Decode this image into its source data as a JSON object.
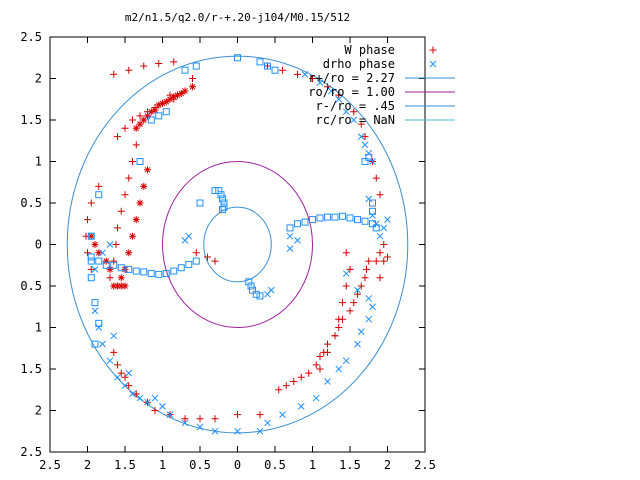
{
  "chart_data": {
    "type": "scatter",
    "title": "m2/n1.5/q2.0/r-+.20-j104/M0.15/512",
    "xlim": [
      -2.5,
      2.5
    ],
    "ylim": [
      -2.5,
      2.5
    ],
    "x_ticks": [
      -2.5,
      -2,
      -1.5,
      -1,
      -0.5,
      0,
      0.5,
      1,
      1.5,
      2,
      2.5
    ],
    "x_tick_labels": [
      "2.5",
      "2",
      "1.5",
      "1",
      "0.5",
      "0",
      "0.5",
      "1",
      "1.5",
      "2",
      "2.5"
    ],
    "y_ticks": [
      2.5,
      2,
      1.5,
      1,
      0.5,
      0,
      -0.5,
      -1,
      -1.5,
      -2,
      -2.5
    ],
    "y_tick_labels": [
      "2.5",
      "2",
      "1.5",
      "1",
      "0.5",
      "0",
      "0.5",
      "1",
      "1.5",
      "2",
      "2.5"
    ],
    "legend_position": "top-right",
    "series": [
      {
        "name": "W phase",
        "color": "#d40000",
        "marker": "plus",
        "points": [
          [
            -1.65,
            2.05
          ],
          [
            -1.45,
            2.1
          ],
          [
            -1.25,
            2.15
          ],
          [
            -1.05,
            2.18
          ],
          [
            -0.85,
            2.2
          ],
          [
            -0.6,
            2.0
          ],
          [
            -0.9,
            1.8
          ],
          [
            -0.7,
            1.85
          ],
          [
            -0.85,
            1.75
          ],
          [
            -1.0,
            1.7
          ],
          [
            -1.1,
            1.65
          ],
          [
            -1.2,
            1.6
          ],
          [
            -1.3,
            1.55
          ],
          [
            -1.4,
            1.5
          ],
          [
            -1.5,
            1.4
          ],
          [
            -1.6,
            1.3
          ],
          [
            -1.35,
            1.2
          ],
          [
            -1.4,
            1.0
          ],
          [
            -1.45,
            0.8
          ],
          [
            -1.5,
            0.6
          ],
          [
            -1.55,
            0.4
          ],
          [
            -1.6,
            0.2
          ],
          [
            -1.62,
            0.0
          ],
          [
            -1.65,
            -0.2
          ],
          [
            -1.7,
            -0.4
          ],
          [
            -1.85,
            0.7
          ],
          [
            -1.95,
            0.5
          ],
          [
            -2.0,
            0.3
          ],
          [
            -2.02,
            0.1
          ],
          [
            -2.0,
            -0.1
          ],
          [
            -1.95,
            -0.3
          ],
          [
            -1.65,
            -1.3
          ],
          [
            -1.6,
            -1.45
          ],
          [
            -1.55,
            -1.55
          ],
          [
            -1.5,
            -1.6
          ],
          [
            -1.45,
            -1.7
          ],
          [
            -1.35,
            -1.8
          ],
          [
            -1.2,
            -1.9
          ],
          [
            -1.1,
            -2.0
          ],
          [
            -0.9,
            -2.05
          ],
          [
            -0.7,
            -2.1
          ],
          [
            -0.5,
            -2.1
          ],
          [
            -0.3,
            -2.1
          ],
          [
            0.0,
            -2.05
          ],
          [
            0.3,
            -2.05
          ],
          [
            0.55,
            -1.75
          ],
          [
            0.65,
            -1.7
          ],
          [
            0.75,
            -1.65
          ],
          [
            0.85,
            -1.6
          ],
          [
            0.95,
            -1.55
          ],
          [
            1.05,
            -1.45
          ],
          [
            1.1,
            -1.35
          ],
          [
            1.15,
            -1.3
          ],
          [
            1.2,
            -1.2
          ],
          [
            1.3,
            -1.1
          ],
          [
            1.35,
            -1.0
          ],
          [
            1.4,
            -0.9
          ],
          [
            1.5,
            -0.8
          ],
          [
            1.55,
            -0.7
          ],
          [
            1.6,
            -0.6
          ],
          [
            1.65,
            -0.5
          ],
          [
            1.7,
            -0.4
          ],
          [
            1.72,
            -0.3
          ],
          [
            1.75,
            -0.2
          ],
          [
            1.45,
            -0.1
          ],
          [
            1.5,
            -0.3
          ],
          [
            1.45,
            -0.5
          ],
          [
            1.4,
            -0.7
          ],
          [
            1.35,
            -0.9
          ],
          [
            1.3,
            -1.1
          ],
          [
            1.2,
            -1.3
          ],
          [
            1.1,
            -1.5
          ],
          [
            1.85,
            -0.2
          ],
          [
            1.9,
            -0.4
          ],
          [
            1.9,
            -0.1
          ],
          [
            1.95,
            0.0
          ],
          [
            1.95,
            -0.2
          ],
          [
            2.0,
            -0.15
          ],
          [
            1.55,
            1.6
          ],
          [
            1.65,
            1.45
          ],
          [
            1.7,
            1.3
          ],
          [
            1.8,
            1.0
          ],
          [
            1.85,
            0.8
          ],
          [
            1.9,
            0.6
          ],
          [
            1.35,
            1.8
          ],
          [
            1.2,
            1.9
          ],
          [
            1.0,
            2.0
          ],
          [
            0.8,
            2.05
          ],
          [
            0.6,
            2.1
          ],
          [
            0.4,
            2.15
          ],
          [
            -0.55,
            -0.1
          ],
          [
            -0.4,
            -0.15
          ],
          [
            -0.3,
            -0.2
          ]
        ]
      },
      {
        "name": "drho phase",
        "color": "#1e90ff",
        "marker": "cross",
        "points": [
          [
            -1.7,
            0.0
          ],
          [
            -1.8,
            -0.1
          ],
          [
            -1.9,
            -0.3
          ],
          [
            -1.9,
            -0.8
          ],
          [
            -1.85,
            -1.0
          ],
          [
            -1.8,
            -1.2
          ],
          [
            -1.7,
            -1.4
          ],
          [
            -1.6,
            -1.6
          ],
          [
            -1.5,
            -1.7
          ],
          [
            -1.4,
            -1.8
          ],
          [
            -1.3,
            -1.85
          ],
          [
            -1.2,
            -1.9
          ],
          [
            -1.0,
            -1.95
          ],
          [
            -0.9,
            -2.05
          ],
          [
            -0.7,
            -2.15
          ],
          [
            -0.5,
            -2.2
          ],
          [
            -0.3,
            -2.25
          ],
          [
            0.0,
            -2.25
          ],
          [
            0.3,
            -2.25
          ],
          [
            0.45,
            -0.55
          ],
          [
            0.4,
            -0.6
          ],
          [
            0.7,
            -0.05
          ],
          [
            0.8,
            0.05
          ],
          [
            0.7,
            0.1
          ],
          [
            -0.7,
            0.05
          ],
          [
            -0.65,
            0.1
          ],
          [
            1.45,
            -0.35
          ],
          [
            1.6,
            -0.55
          ],
          [
            1.75,
            -0.65
          ],
          [
            1.8,
            -0.75
          ],
          [
            1.75,
            -0.9
          ],
          [
            1.65,
            -1.05
          ],
          [
            1.6,
            -1.2
          ],
          [
            1.45,
            -1.4
          ],
          [
            1.35,
            -1.5
          ],
          [
            1.2,
            -1.65
          ],
          [
            1.05,
            -1.85
          ],
          [
            0.85,
            -1.95
          ],
          [
            0.6,
            -2.05
          ],
          [
            0.4,
            -2.15
          ],
          [
            1.75,
            0.55
          ],
          [
            1.8,
            0.35
          ],
          [
            1.85,
            0.25
          ],
          [
            1.9,
            0.1
          ],
          [
            1.95,
            0.2
          ],
          [
            2.0,
            0.3
          ],
          [
            1.8,
            1.0
          ],
          [
            1.75,
            1.1
          ],
          [
            1.7,
            1.2
          ],
          [
            1.65,
            1.3
          ],
          [
            1.55,
            1.5
          ],
          [
            1.45,
            1.6
          ],
          [
            1.35,
            1.75
          ],
          [
            1.25,
            1.85
          ],
          [
            1.1,
            1.95
          ],
          [
            0.9,
            2.05
          ],
          [
            -1.65,
            -1.1
          ],
          [
            -1.45,
            -1.55
          ],
          [
            -1.1,
            -1.85
          ]
        ]
      },
      {
        "name": "r+/ro = 2.27",
        "color": "#3a8fd0",
        "radius": 2.27
      },
      {
        "name": "ro/ro = 1.00",
        "color": "#a020a0",
        "radius": 1.0
      },
      {
        "name": "r-/ro = .45",
        "color": "#3a8fd0",
        "radius": 0.45
      },
      {
        "name": "rc/ro = NaN",
        "color": "#40c0c0"
      }
    ],
    "dense_clusters": {
      "W_star_arm_left": [
        [
          -0.6,
          1.9
        ],
        [
          -0.7,
          1.85
        ],
        [
          -0.75,
          1.82
        ],
        [
          -0.8,
          1.8
        ],
        [
          -0.85,
          1.78
        ],
        [
          -0.9,
          1.75
        ],
        [
          -0.95,
          1.72
        ],
        [
          -1.0,
          1.7
        ],
        [
          -1.05,
          1.68
        ],
        [
          -1.1,
          1.62
        ],
        [
          -1.15,
          1.6
        ],
        [
          -1.2,
          1.55
        ],
        [
          -1.25,
          1.5
        ],
        [
          -1.3,
          1.45
        ],
        [
          -1.35,
          1.4
        ],
        [
          -1.2,
          0.9
        ],
        [
          -1.25,
          0.7
        ],
        [
          -1.3,
          0.5
        ],
        [
          -1.35,
          0.3
        ],
        [
          -1.4,
          0.1
        ],
        [
          -1.45,
          -0.1
        ],
        [
          -1.5,
          -0.3
        ],
        [
          -1.55,
          -0.4
        ],
        [
          -1.95,
          0.1
        ],
        [
          -1.9,
          0.0
        ],
        [
          -1.85,
          -0.1
        ],
        [
          -1.75,
          -0.2
        ],
        [
          -1.7,
          -0.3
        ],
        [
          -1.65,
          -0.5
        ],
        [
          -1.6,
          -0.5
        ],
        [
          -1.55,
          -0.5
        ],
        [
          -1.5,
          -0.5
        ]
      ],
      "drho_square_strip_left": [
        [
          -1.95,
          -0.15
        ],
        [
          -1.85,
          -0.2
        ],
        [
          -1.75,
          -0.25
        ],
        [
          -1.65,
          -0.25
        ],
        [
          -1.55,
          -0.28
        ],
        [
          -1.45,
          -0.3
        ],
        [
          -1.35,
          -0.32
        ],
        [
          -1.25,
          -0.33
        ],
        [
          -1.15,
          -0.35
        ],
        [
          -1.05,
          -0.36
        ],
        [
          -0.95,
          -0.35
        ],
        [
          -0.85,
          -0.32
        ],
        [
          -0.75,
          -0.28
        ],
        [
          -0.65,
          -0.24
        ],
        [
          -0.55,
          -0.2
        ]
      ],
      "drho_square_strip_right": [
        [
          0.7,
          0.2
        ],
        [
          0.8,
          0.25
        ],
        [
          0.9,
          0.27
        ],
        [
          1.0,
          0.3
        ],
        [
          1.1,
          0.32
        ],
        [
          1.2,
          0.33
        ],
        [
          1.3,
          0.33
        ],
        [
          1.4,
          0.34
        ],
        [
          1.5,
          0.32
        ],
        [
          1.6,
          0.3
        ],
        [
          1.7,
          0.28
        ],
        [
          1.8,
          0.25
        ],
        [
          1.85,
          0.2
        ]
      ],
      "drho_square_inner_top": [
        [
          -0.3,
          0.65
        ],
        [
          -0.25,
          0.65
        ],
        [
          -0.22,
          0.6
        ],
        [
          -0.2,
          0.55
        ],
        [
          -0.18,
          0.5
        ],
        [
          -0.18,
          0.45
        ],
        [
          -0.2,
          0.42
        ],
        [
          -0.5,
          0.5
        ]
      ],
      "drho_square_inner_bottom": [
        [
          0.15,
          -0.45
        ],
        [
          0.18,
          -0.5
        ],
        [
          0.2,
          -0.55
        ],
        [
          0.25,
          -0.6
        ],
        [
          0.3,
          -0.62
        ]
      ],
      "drho_square_outer": [
        [
          -1.15,
          1.5
        ],
        [
          -1.05,
          1.55
        ],
        [
          -0.95,
          1.6
        ],
        [
          -1.3,
          1.0
        ],
        [
          -1.85,
          0.6
        ],
        [
          -1.95,
          0.1
        ],
        [
          -1.95,
          -0.2
        ],
        [
          -1.95,
          -0.4
        ],
        [
          -1.9,
          -0.7
        ],
        [
          -1.85,
          -0.95
        ],
        [
          -1.9,
          -1.2
        ],
        [
          -0.7,
          2.1
        ],
        [
          -0.55,
          2.15
        ],
        [
          0.0,
          2.25
        ],
        [
          0.3,
          2.2
        ],
        [
          0.4,
          2.15
        ],
        [
          0.5,
          2.1
        ],
        [
          1.8,
          0.5
        ],
        [
          1.8,
          0.4
        ],
        [
          1.75,
          1.05
        ],
        [
          1.7,
          1.0
        ]
      ]
    }
  }
}
